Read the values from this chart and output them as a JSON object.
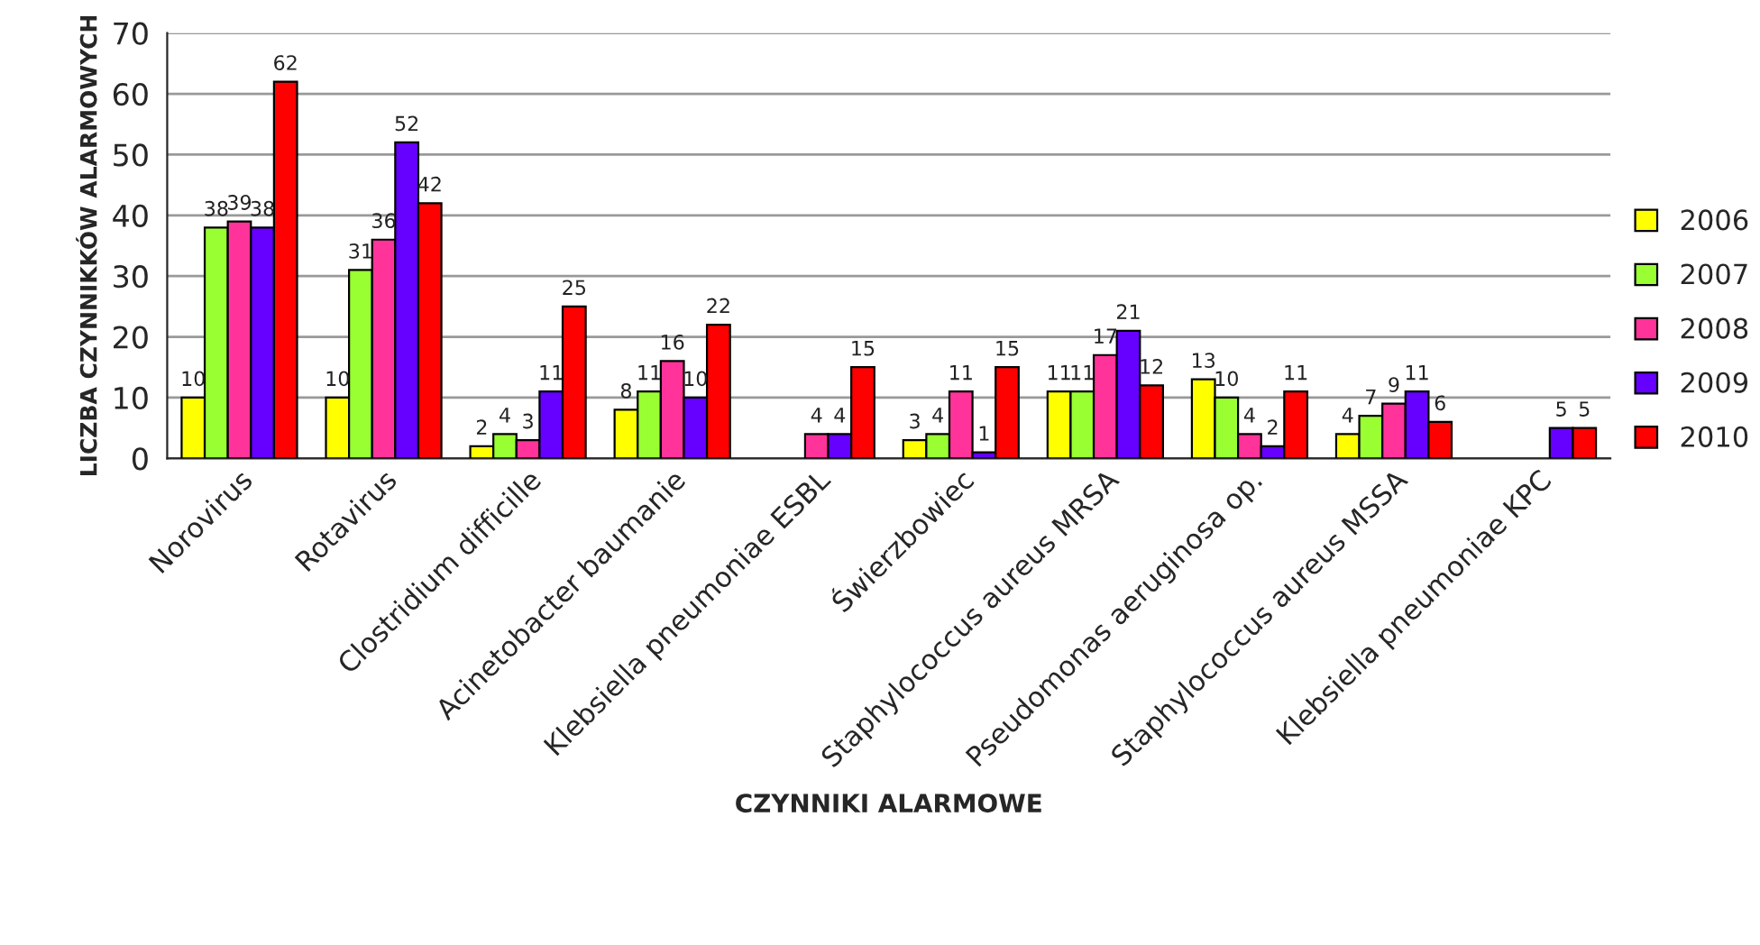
{
  "chart_data": {
    "type": "bar",
    "xlabel": "CZYNNIKI ALARMOWE",
    "ylabel": "LICZBA CZYNNIKKÓW ALARMOWYCH",
    "categories": [
      "Norovirus",
      "Rotavirus",
      "Clostridium difficille",
      "Acinetobacter baumanie",
      "Klebsiella pneumoniae ESBL",
      "Świerzbowiec",
      "Staphylococcus aureus MRSA",
      "Pseudomonas aeruginosa op.",
      "Staphylococcus aureus MSSA",
      "Klebsiella pneumoniae KPC"
    ],
    "series": [
      {
        "name": "2006",
        "color": "#ffff00",
        "values": [
          10,
          10,
          2,
          8,
          null,
          3,
          11,
          13,
          4,
          null
        ]
      },
      {
        "name": "2007",
        "color": "#99ff33",
        "values": [
          38,
          31,
          4,
          11,
          null,
          4,
          11,
          10,
          7,
          null
        ]
      },
      {
        "name": "2008",
        "color": "#ff3399",
        "values": [
          39,
          36,
          3,
          16,
          4,
          11,
          17,
          4,
          9,
          null
        ]
      },
      {
        "name": "2009",
        "color": "#6600ff",
        "values": [
          38,
          52,
          11,
          10,
          4,
          1,
          21,
          2,
          11,
          5
        ]
      },
      {
        "name": "2010",
        "color": "#ff0000",
        "values": [
          62,
          42,
          25,
          22,
          15,
          15,
          12,
          11,
          6,
          5
        ]
      }
    ],
    "ylim": [
      0,
      70
    ],
    "yticks": [
      0,
      10,
      20,
      30,
      40,
      50,
      60,
      70
    ],
    "grid": "y",
    "legend": "right",
    "data_labels": true
  }
}
